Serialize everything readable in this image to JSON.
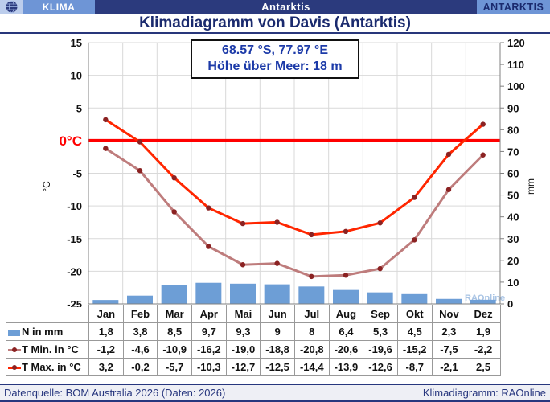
{
  "header": {
    "left_label": "KLIMA",
    "center_label": "Antarktis",
    "right_label": "ANTARKTIS"
  },
  "title": "Klimadiagramm von Davis (Antarktis)",
  "location_box": {
    "line1": "68.57 °S, 77.97 °E",
    "line2": "Höhe über Meer: 18 m"
  },
  "chart_data": {
    "type": "bar+line",
    "title": "Klimadiagramm von Davis (Antarktis)",
    "categories": [
      "Jan",
      "Feb",
      "Mar",
      "Apr",
      "Mai",
      "Jun",
      "Jul",
      "Aug",
      "Sep",
      "Okt",
      "Nov",
      "Dez"
    ],
    "series": [
      {
        "name": "N in mm",
        "type": "bar",
        "axis": "right",
        "color": "#6D9ED6",
        "values": [
          1.8,
          3.8,
          8.5,
          9.7,
          9.3,
          9,
          8,
          6.4,
          5.3,
          4.5,
          2.3,
          1.9
        ]
      },
      {
        "name": "T Min. in °C",
        "type": "line",
        "axis": "left",
        "color": "#BE7C7C",
        "marker": "#8B2222",
        "values": [
          -1.2,
          -4.6,
          -10.9,
          -16.2,
          -19.0,
          -18.8,
          -20.8,
          -20.6,
          -19.6,
          -15.2,
          -7.5,
          -2.2
        ]
      },
      {
        "name": "T Max. in °C",
        "type": "line",
        "axis": "left",
        "color": "#FF2600",
        "marker": "#8B2222",
        "values": [
          3.2,
          -0.2,
          -5.7,
          -10.3,
          -12.7,
          -12.5,
          -14.4,
          -13.9,
          -12.6,
          -8.7,
          -2.1,
          2.5
        ]
      }
    ],
    "left_axis": {
      "label": "°C",
      "min": -25,
      "max": 15,
      "step": 5
    },
    "right_axis": {
      "label": "mm",
      "min": 0,
      "max": 120,
      "step": 10
    },
    "zero_line": {
      "value": 0,
      "color": "#FF0000",
      "label": "0°C"
    },
    "grid": true,
    "watermark": "RAOnline",
    "colors": {
      "grid": "#D9D9D9",
      "axis": "#808080",
      "tick_text": "#111111"
    }
  },
  "table": {
    "months": [
      "Jan",
      "Feb",
      "Mar",
      "Apr",
      "Mai",
      "Jun",
      "Jul",
      "Aug",
      "Sep",
      "Okt",
      "Nov",
      "Dez"
    ],
    "rows": [
      {
        "label": "N in mm",
        "icon": {
          "type": "bar",
          "color": "#6D9ED6"
        },
        "values": [
          "1,8",
          "3,8",
          "8,5",
          "9,7",
          "9,3",
          "9",
          "8",
          "6,4",
          "5,3",
          "4,5",
          "2,3",
          "1,9"
        ]
      },
      {
        "label": "T Min. in °C",
        "icon": {
          "type": "line",
          "color": "#BE7C7C",
          "dot": "#8B2222"
        },
        "values": [
          "-1,2",
          "-4,6",
          "-10,9",
          "-16,2",
          "-19,0",
          "-18,8",
          "-20,8",
          "-20,6",
          "-19,6",
          "-15,2",
          "-7,5",
          "-2,2"
        ]
      },
      {
        "label": "T Max. in °C",
        "icon": {
          "type": "line",
          "color": "#FF2600",
          "dot": "#8B2222"
        },
        "values": [
          "3,2",
          "-0,2",
          "-5,7",
          "-10,3",
          "-12,7",
          "-12,5",
          "-14,4",
          "-13,9",
          "-12,6",
          "-8,7",
          "-2,1",
          "2,5"
        ]
      }
    ]
  },
  "footer": {
    "left": "Datenquelle: BOM Australia 2026 (Daten: 2026)",
    "right": "Klimadiagramm: RAOnline"
  }
}
